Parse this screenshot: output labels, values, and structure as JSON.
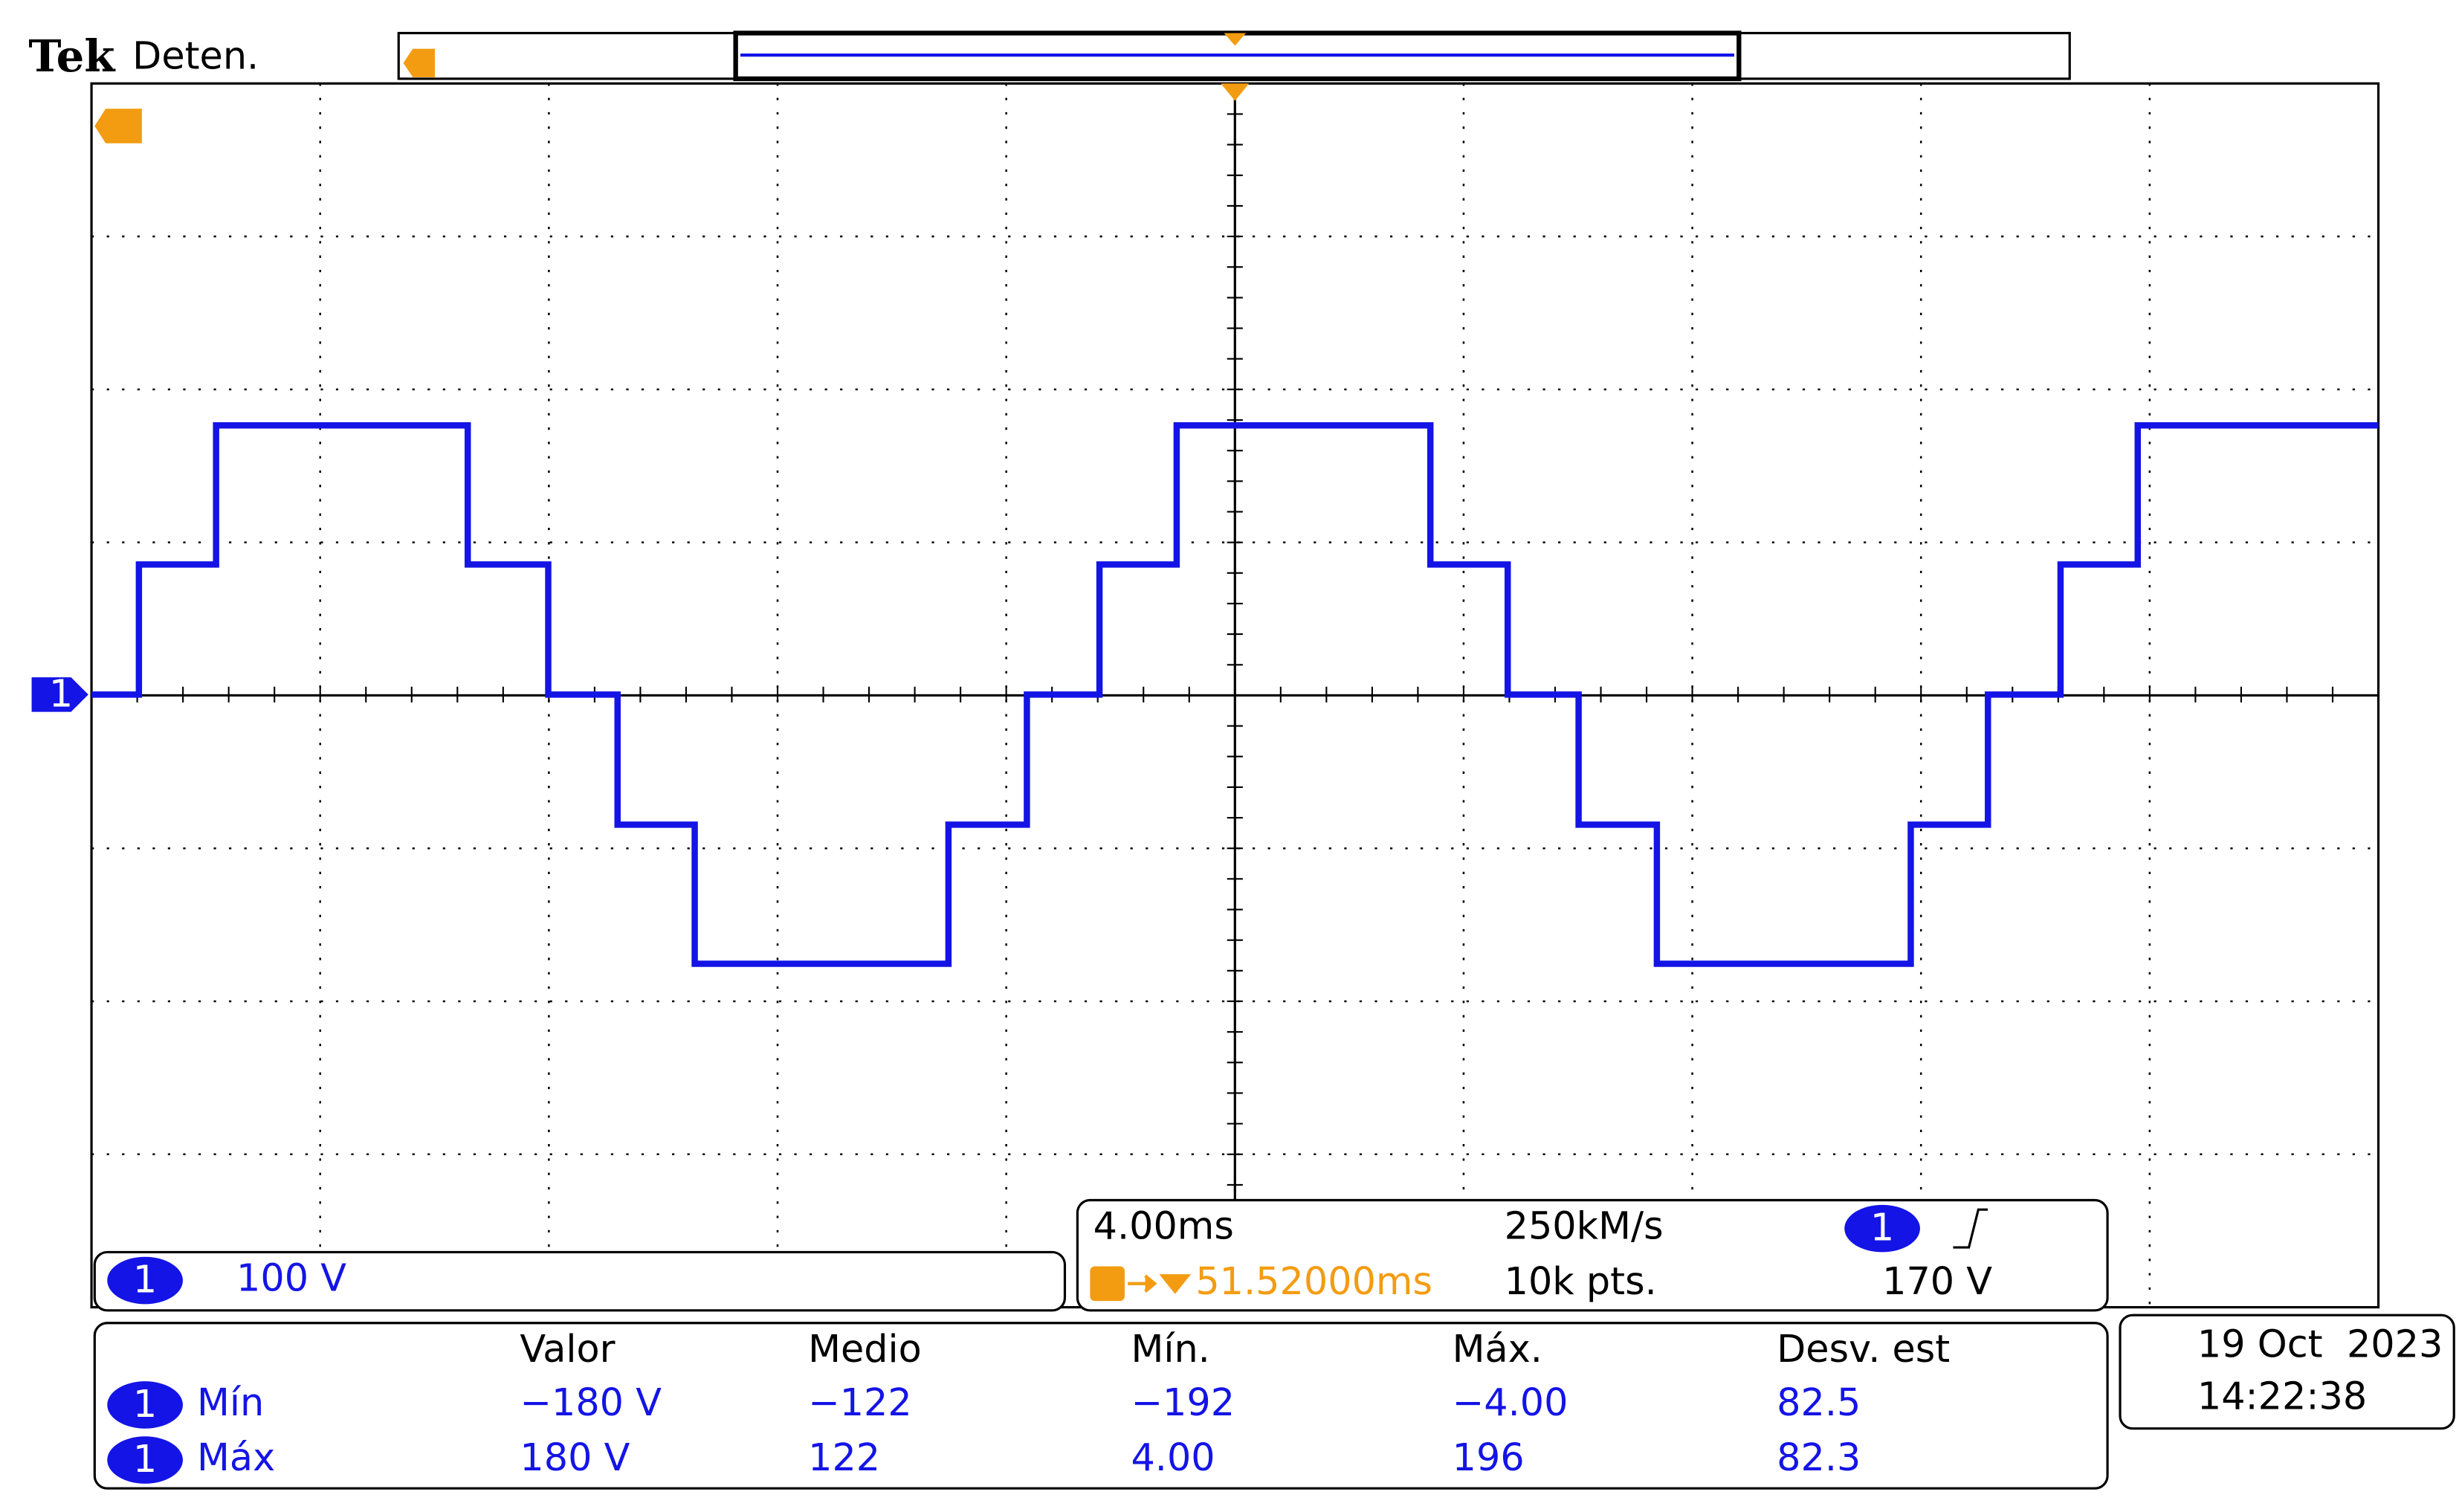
{
  "header": {
    "brand": "Tek",
    "status": "Deten."
  },
  "channel": {
    "badge": "1",
    "scale": {
      "value": 100,
      "label": "100 V"
    }
  },
  "acquisition": {
    "timebase": {
      "value": 4,
      "label": "4.00ms"
    },
    "sample_rate": "250kM/s",
    "trigger_position": "51.52000ms",
    "record_length": "10k pts.",
    "trigger_channel": "1",
    "trigger_level": "170 V"
  },
  "measurements": {
    "headers": [
      "Valor",
      "Medio",
      "Mín.",
      "Máx.",
      "Desv. est"
    ],
    "rows": [
      {
        "channel": "1",
        "name": "Mín",
        "values": [
          "−180 V",
          "−122",
          "−192",
          "−4.00",
          "82.5"
        ]
      },
      {
        "channel": "1",
        "name": "Máx",
        "values": [
          "180 V",
          "122",
          "4.00",
          "196",
          "82.3"
        ]
      }
    ]
  },
  "timestamp": {
    "date": "19 Oct  2023",
    "time": "14:22:38"
  },
  "waveform": {
    "color": "#1414e6",
    "t_ms": [
      -20,
      -19.17,
      -19.17,
      -17.82,
      -17.82,
      -13.42,
      -13.42,
      -12.01,
      -12.01,
      -10.8,
      -10.8,
      -9.45,
      -9.45,
      -5.01,
      -5.01,
      -3.64,
      -3.64,
      -2.37,
      -2.37,
      -1.02,
      -1.02,
      3.42,
      3.42,
      4.77,
      4.77,
      6.01,
      6.01,
      7.38,
      7.38,
      11.82,
      11.82,
      13.17,
      13.17,
      14.44,
      14.44,
      15.79,
      15.79,
      20
    ],
    "v": [
      0,
      0,
      85,
      85,
      176,
      176,
      85,
      85,
      0,
      0,
      -85,
      -85,
      -176,
      -176,
      -85,
      -85,
      0,
      0,
      85,
      85,
      176,
      176,
      85,
      85,
      0,
      0,
      -85,
      -85,
      -176,
      -176,
      -85,
      -85,
      0,
      0,
      85,
      85,
      176,
      176
    ]
  }
}
